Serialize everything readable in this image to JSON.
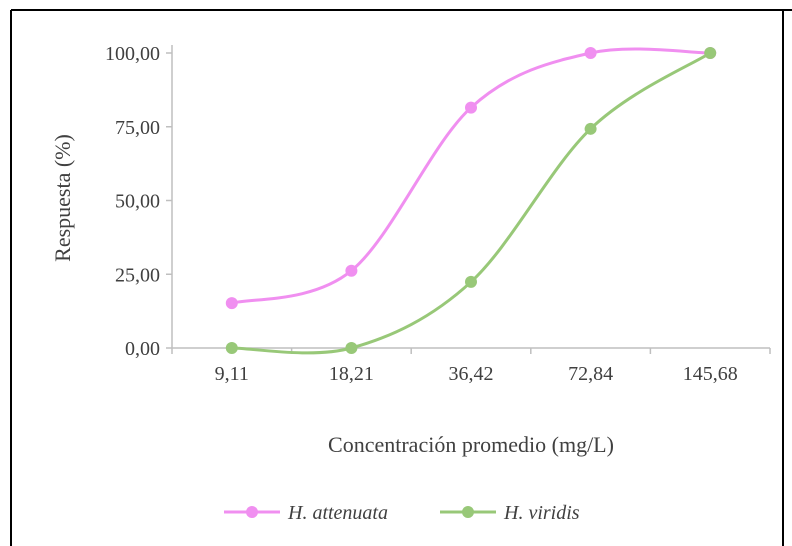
{
  "chart_data": {
    "type": "line",
    "title": "",
    "xlabel": "Concentración promedio (mg/L)",
    "ylabel": "Respuesta (%)",
    "categories": [
      "9,11",
      "18,21",
      "36,42",
      "72,84",
      "145,68"
    ],
    "y_ticks": [
      "0,00",
      "25,00",
      "50,00",
      "75,00",
      "100,00"
    ],
    "ylim": [
      0,
      100
    ],
    "grid": false,
    "legend_position": "bottom",
    "series": [
      {
        "name": "H. attenuata",
        "color": "#f08ff0",
        "values": [
          15.2,
          26.2,
          81.5,
          100,
          100
        ]
      },
      {
        "name": "H. viridis",
        "color": "#98c878",
        "values": [
          0,
          0,
          22.4,
          74.3,
          100
        ]
      }
    ]
  }
}
